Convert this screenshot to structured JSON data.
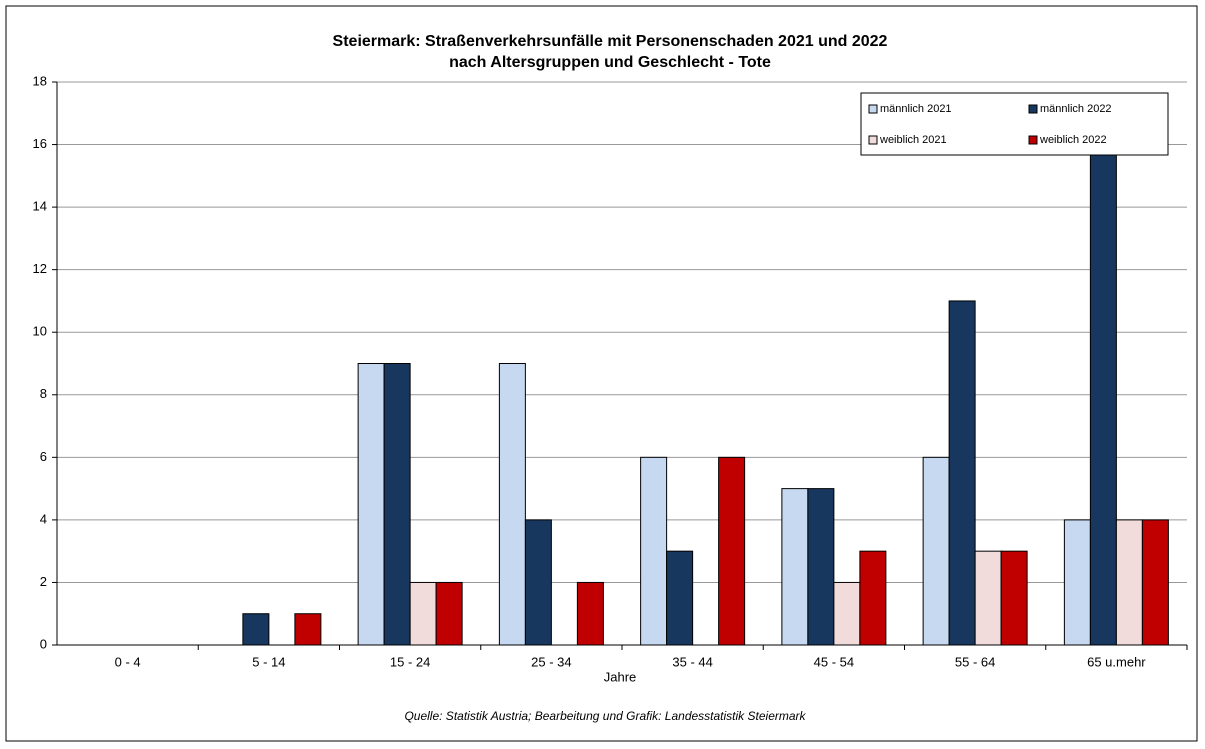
{
  "chart_data": {
    "type": "bar",
    "title": "Steiermark: Straßenverkehrsunfälle mit Personenschaden 2021 und 2022",
    "subtitle": "nach Altersgruppen und Geschlecht - Tote",
    "x_label": "Jahre",
    "source": "Quelle: Statistik Austria; Bearbeitung und Grafik: Landesstatistik Steiermark",
    "categories": [
      "0 - 4",
      "5 - 14",
      "15 - 24",
      "25 - 34",
      "35 - 44",
      "45 - 54",
      "55 - 64",
      "65 u.mehr"
    ],
    "series": [
      {
        "name": "männlich 2021",
        "color": "#c6d9f1",
        "values": [
          0,
          0,
          9,
          9,
          6,
          5,
          6,
          4
        ]
      },
      {
        "name": "männlich 2022",
        "color": "#17375e",
        "values": [
          0,
          1,
          9,
          4,
          3,
          5,
          11,
          17
        ]
      },
      {
        "name": "weiblich 2021",
        "color": "#f2dcdb",
        "values": [
          0,
          0,
          2,
          0,
          0,
          2,
          3,
          4
        ]
      },
      {
        "name": "weiblich 2022",
        "color": "#c00000",
        "values": [
          0,
          1,
          2,
          2,
          6,
          3,
          3,
          4
        ]
      }
    ],
    "ylim": [
      0,
      18
    ],
    "yticks": [
      0,
      2,
      4,
      6,
      8,
      10,
      12,
      14,
      16,
      18
    ],
    "grid": true,
    "legend": "top-right"
  }
}
